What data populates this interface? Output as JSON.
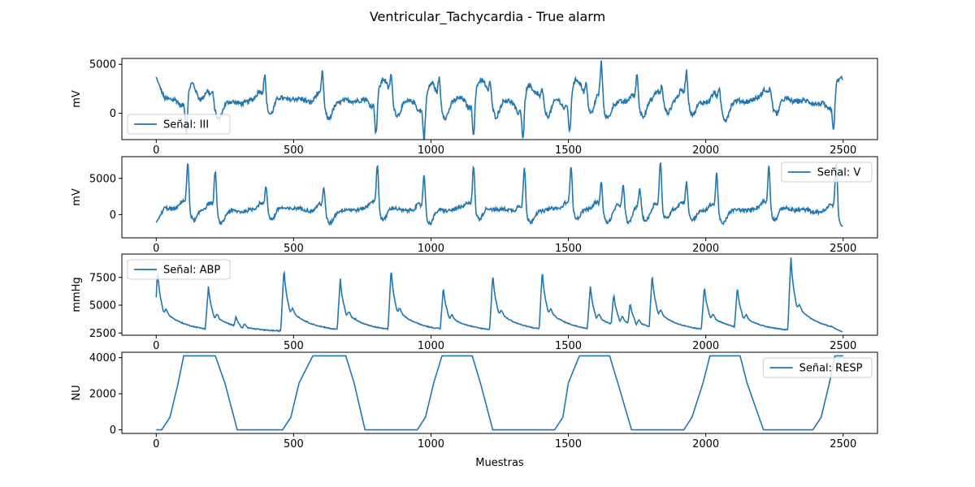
{
  "figure": {
    "title": "Ventricular_Tachycardia - True alarm",
    "xlabel": "Muestras"
  },
  "colors": {
    "line": "#1f77b4",
    "axes": "#000000",
    "legend_border": "#cccccc"
  },
  "chart_data": [
    {
      "type": "line",
      "ylabel": "mV",
      "xlim": [
        -125,
        2625
      ],
      "ylim": [
        -2700,
        5600
      ],
      "xticks": [
        0,
        500,
        1000,
        1500,
        2000,
        2500
      ],
      "yticks": [
        0,
        5000
      ],
      "legend_loc": "lower-left",
      "series": [
        {
          "name": "Señal: III",
          "kind": "ecg_lead_iii"
        }
      ],
      "beats": [
        {
          "x": 110,
          "peak": -2400
        },
        {
          "x": 205,
          "peak": 2300
        },
        {
          "x": 395,
          "peak": 4000
        },
        {
          "x": 605,
          "peak": 4400
        },
        {
          "x": 800,
          "peak": -2400
        },
        {
          "x": 855,
          "peak": 3700
        },
        {
          "x": 975,
          "peak": -2400
        },
        {
          "x": 1030,
          "peak": 3700
        },
        {
          "x": 1155,
          "peak": -2400
        },
        {
          "x": 1215,
          "peak": 3200
        },
        {
          "x": 1335,
          "peak": -2400
        },
        {
          "x": 1405,
          "peak": 2700
        },
        {
          "x": 1505,
          "peak": -2400
        },
        {
          "x": 1565,
          "peak": 3000
        },
        {
          "x": 1620,
          "peak": 5300
        },
        {
          "x": 1750,
          "peak": 4300
        },
        {
          "x": 1840,
          "peak": 2600
        },
        {
          "x": 1930,
          "peak": 4200
        },
        {
          "x": 2050,
          "peak": 2700
        },
        {
          "x": 2235,
          "peak": 2500
        },
        {
          "x": 2465,
          "peak": -2300
        },
        {
          "x": 2495,
          "peak": 3400
        }
      ],
      "baseline": 1300,
      "y_start": 3700,
      "y_end": 3400
    },
    {
      "type": "line",
      "ylabel": "mV",
      "xlim": [
        -125,
        2625
      ],
      "ylim": [
        -3200,
        8000
      ],
      "xticks": [
        0,
        500,
        1000,
        1500,
        2000,
        2500
      ],
      "yticks": [
        0,
        5000
      ],
      "legend_loc": "upper-right",
      "series": [
        {
          "name": "Señal: V",
          "kind": "ecg_lead_v"
        }
      ],
      "beats": [
        {
          "x": 115,
          "peak": 6800
        },
        {
          "x": 215,
          "peak": 6400
        },
        {
          "x": 400,
          "peak": 3900
        },
        {
          "x": 610,
          "peak": 4000
        },
        {
          "x": 805,
          "peak": 6900
        },
        {
          "x": 975,
          "peak": 6100
        },
        {
          "x": 1155,
          "peak": 6600
        },
        {
          "x": 1340,
          "peak": 6800
        },
        {
          "x": 1510,
          "peak": 6600
        },
        {
          "x": 1620,
          "peak": 4600
        },
        {
          "x": 1700,
          "peak": 4200
        },
        {
          "x": 1760,
          "peak": 3900
        },
        {
          "x": 1835,
          "peak": 7200
        },
        {
          "x": 1930,
          "peak": 4300
        },
        {
          "x": 2040,
          "peak": 6000
        },
        {
          "x": 2230,
          "peak": 6700
        },
        {
          "x": 2475,
          "peak": 7500
        }
      ],
      "baseline": 700,
      "y_start": -1100,
      "y_end": -1700
    },
    {
      "type": "line",
      "ylabel": "mmHg",
      "xlim": [
        -125,
        2625
      ],
      "ylim": [
        2300,
        9600
      ],
      "xticks": [
        0,
        500,
        1000,
        1500,
        2000,
        2500
      ],
      "yticks": [
        2500,
        5000,
        7500
      ],
      "legend_loc": "upper-left",
      "series": [
        {
          "name": "Señal: ABP",
          "kind": "arterial_pressure"
        }
      ],
      "beats": [
        {
          "x": 5,
          "peak": 8100
        },
        {
          "x": 190,
          "peak": 6700
        },
        {
          "x": 290,
          "peak": 4000
        },
        {
          "x": 465,
          "peak": 8300
        },
        {
          "x": 670,
          "peak": 7400
        },
        {
          "x": 725,
          "peak": 3900
        },
        {
          "x": 855,
          "peak": 8300
        },
        {
          "x": 1045,
          "peak": 6600
        },
        {
          "x": 1225,
          "peak": 7800
        },
        {
          "x": 1405,
          "peak": 8100
        },
        {
          "x": 1580,
          "peak": 6700
        },
        {
          "x": 1665,
          "peak": 6000
        },
        {
          "x": 1725,
          "peak": 5200
        },
        {
          "x": 1805,
          "peak": 7800
        },
        {
          "x": 1995,
          "peak": 6700
        },
        {
          "x": 2115,
          "peak": 6600
        },
        {
          "x": 2310,
          "peak": 9300
        }
      ],
      "diastolic": 2600,
      "y_start": 5700,
      "y_end": 2600
    },
    {
      "type": "line",
      "ylabel": "NU",
      "xlabel": "Muestras",
      "xlim": [
        -125,
        2625
      ],
      "ylim": [
        -200,
        4300
      ],
      "xticks": [
        0,
        500,
        1000,
        1500,
        2000,
        2500
      ],
      "yticks": [
        0,
        2000,
        4000
      ],
      "legend_loc": "upper-right",
      "series": [
        {
          "name": "Señal: RESP",
          "kind": "respiration",
          "x": [
            0,
            20,
            50,
            80,
            100,
            215,
            250,
            295,
            460,
            490,
            520,
            570,
            690,
            720,
            760,
            950,
            980,
            1010,
            1040,
            1150,
            1180,
            1225,
            1450,
            1480,
            1500,
            1540,
            1650,
            1680,
            1730,
            1920,
            1950,
            1990,
            2015,
            2125,
            2150,
            2210,
            2390,
            2420,
            2450,
            2470,
            2500
          ],
          "values": [
            0,
            0,
            700,
            2600,
            4100,
            4100,
            2600,
            0,
            0,
            700,
            2600,
            4100,
            4100,
            2600,
            0,
            0,
            700,
            2600,
            4100,
            4100,
            2600,
            0,
            0,
            700,
            2600,
            4100,
            4100,
            2600,
            0,
            0,
            700,
            2600,
            4100,
            4100,
            2600,
            0,
            0,
            700,
            2600,
            4100,
            4100
          ]
        }
      ]
    }
  ]
}
